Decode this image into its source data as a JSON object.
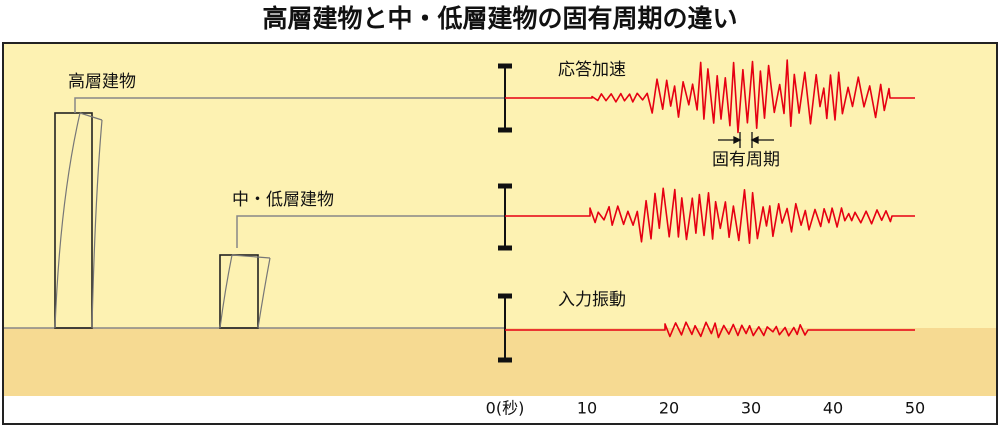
{
  "title": "高層建物と中・低層建物の固有周期の違い",
  "buildings": {
    "tall": "高層建物",
    "low": "中・低層建物"
  },
  "traces": {
    "response": "応答加速",
    "period": "固有周期",
    "input": "入力振動"
  },
  "axis": {
    "labels": [
      "0(秒)",
      "10",
      "20",
      "30",
      "40",
      "50"
    ]
  }
}
